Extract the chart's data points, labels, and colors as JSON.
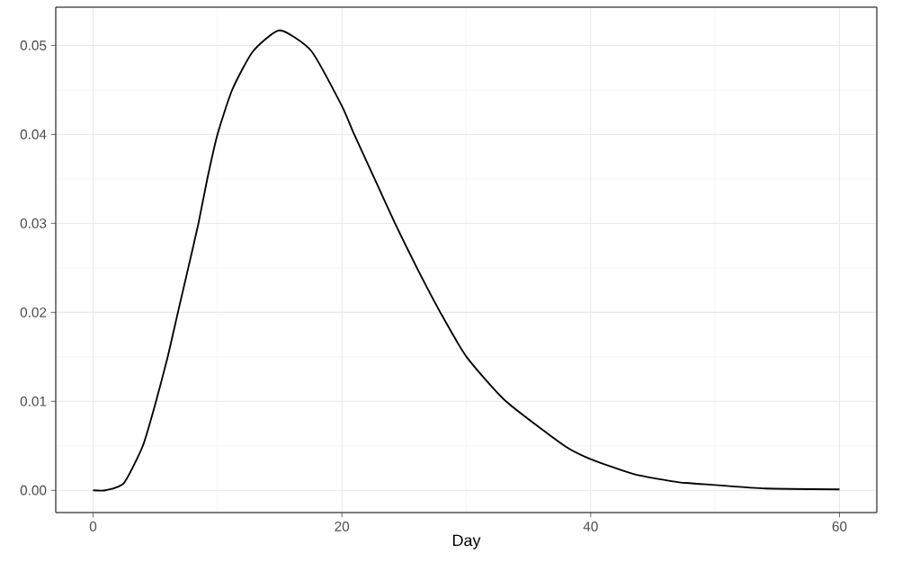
{
  "chart_data": {
    "type": "line",
    "xlabel": "Day",
    "x": [
      0,
      1,
      2.47,
      4.0,
      5.06,
      6.0,
      6.82,
      7.65,
      8.47,
      9.18,
      10.0,
      11.18,
      12.83,
      15.0,
      17.53,
      20.0,
      20.99,
      22.63,
      24.27,
      26.03,
      27.91,
      30.02,
      33.19,
      37.89,
      40.0,
      43.5,
      47.1,
      50.0,
      54.05,
      60.0
    ],
    "series": [
      {
        "color": "#000000",
        "values": [
          0,
          0,
          0.0008,
          0.005,
          0.01,
          0.015,
          0.02,
          0.025,
          0.03,
          0.035,
          0.04,
          0.045,
          0.0493,
          0.0517,
          0.0494,
          0.0432,
          0.04,
          0.035,
          0.03,
          0.025,
          0.02,
          0.015,
          0.01,
          0.005,
          0.0035,
          0.0018,
          0.0009,
          0.0006,
          0.0002,
          0.0001
        ]
      }
    ],
    "xlim": [
      -3,
      63
    ],
    "ylim": [
      -0.0025,
      0.0543
    ],
    "xticks": [
      0,
      20,
      40,
      60
    ],
    "yticks": [
      {
        "value": 0,
        "label": "0.00"
      },
      {
        "value": 0.01,
        "label": "0.01"
      },
      {
        "value": 0.02,
        "label": "0.02"
      },
      {
        "value": 0.03,
        "label": "0.03"
      },
      {
        "value": 0.04,
        "label": "0.04"
      },
      {
        "value": 0.05,
        "label": "0.05"
      }
    ],
    "grid": true,
    "marker": "none",
    "line_style": "solid"
  }
}
